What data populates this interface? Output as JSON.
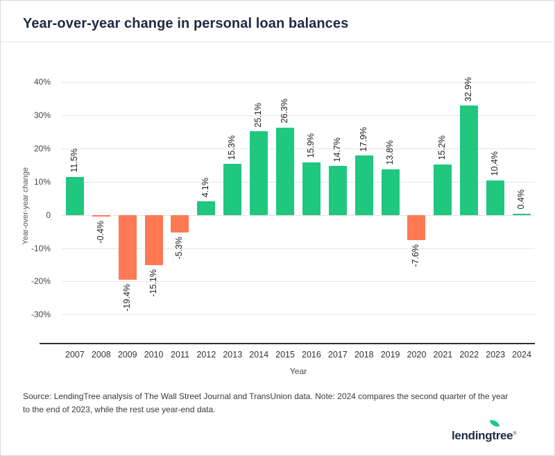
{
  "title": "Year-over-year change in personal loan balances",
  "colors": {
    "positive": "#1fc77f",
    "negative": "#fd7a55",
    "title_navy": "#1e2a44",
    "grid": "#e4e4e4",
    "axis_line": "#2f2f2f"
  },
  "chart_data": {
    "type": "bar",
    "title": "Year-over-year change in personal loan balances",
    "xlabel": "Year",
    "ylabel": "Year-over-year change",
    "categories": [
      "2007",
      "2008",
      "2009",
      "2010",
      "2011",
      "2012",
      "2013",
      "2014",
      "2015",
      "2016",
      "2017",
      "2018",
      "2019",
      "2020",
      "2021",
      "2022",
      "2023",
      "2024"
    ],
    "values": [
      11.5,
      -0.4,
      -19.4,
      -15.1,
      -5.3,
      4.1,
      15.3,
      25.1,
      26.3,
      15.9,
      14.7,
      17.9,
      13.8,
      -7.6,
      15.2,
      32.9,
      10.4,
      0.4
    ],
    "labels": [
      "11.5%",
      "-0.4%",
      "-19.4%",
      "-15.1%",
      "-5.3%",
      "4.1%",
      "15.3%",
      "25.1%",
      "26.3%",
      "15.9%",
      "14.7%",
      "17.9%",
      "13.8%",
      "-7.6%",
      "15.2%",
      "32.9%",
      "10.4%",
      "0.4%"
    ],
    "yticks": [
      40,
      30,
      20,
      10,
      0,
      -10,
      -20,
      -30
    ],
    "ytick_labels": [
      "40%",
      "30%",
      "20%",
      "10%",
      "0",
      "-10%",
      "-20%",
      "-30%"
    ],
    "ylim": [
      -38.5,
      44
    ],
    "grid": true,
    "legend": "none"
  },
  "footer": {
    "source_text": "Source: LendingTree analysis of The Wall Street Journal and TransUnion data. Note: 2024 compares the second quarter of the year to the end of 2023, while the rest use year-end data.",
    "logo_text": "lendingtree",
    "logo_reg": "®"
  }
}
